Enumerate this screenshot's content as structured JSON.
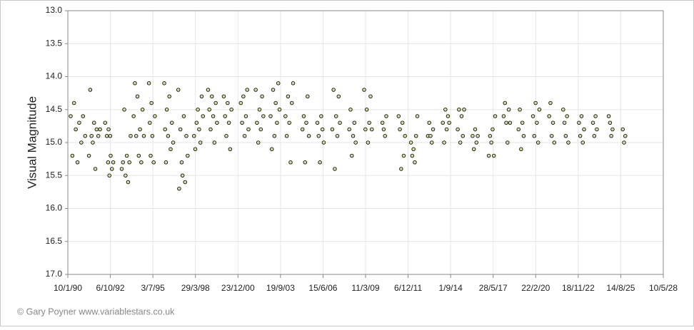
{
  "chart_data": {
    "type": "scatter",
    "ylabel": "Visual Magnitude",
    "credit": "© Gary Poyner www.variablestars.co.uk",
    "color": "#d8dca0",
    "y_inverted": true,
    "grid": true,
    "xlim": [
      32883,
      46883
    ],
    "ylim": [
      13,
      17
    ],
    "xticks": [
      {
        "value": 32883,
        "label": "10/1/90"
      },
      {
        "value": 33883,
        "label": "6/10/92"
      },
      {
        "value": 34883,
        "label": "3/7/95"
      },
      {
        "value": 35883,
        "label": "29/3/98"
      },
      {
        "value": 36883,
        "label": "23/12/00"
      },
      {
        "value": 37883,
        "label": "19/9/03"
      },
      {
        "value": 38883,
        "label": "15/6/06"
      },
      {
        "value": 39883,
        "label": "11/3/09"
      },
      {
        "value": 40883,
        "label": "6/12/11"
      },
      {
        "value": 41883,
        "label": "1/9/14"
      },
      {
        "value": 42883,
        "label": "28/5/17"
      },
      {
        "value": 43883,
        "label": "22/2/20"
      },
      {
        "value": 44883,
        "label": "18/11/22"
      },
      {
        "value": 45883,
        "label": "14/8/25"
      },
      {
        "value": 46883,
        "label": "10/5/28"
      }
    ],
    "yticks": [
      {
        "value": 13,
        "label": "13.0"
      },
      {
        "value": 13.5,
        "label": "13.5"
      },
      {
        "value": 14,
        "label": "14.0"
      },
      {
        "value": 14.5,
        "label": "14.5"
      },
      {
        "value": 15,
        "label": "15.0"
      },
      {
        "value": 15.5,
        "label": "15.5"
      },
      {
        "value": 16,
        "label": "16.0"
      },
      {
        "value": 16.5,
        "label": "16.5"
      },
      {
        "value": 17,
        "label": "17.0"
      }
    ],
    "x": [
      32950,
      32990,
      33030,
      33070,
      33110,
      33150,
      33200,
      33240,
      33290,
      33380,
      33410,
      33440,
      33470,
      33500,
      33530,
      33560,
      33600,
      33640,
      33760,
      33800,
      33840,
      33880,
      33830,
      33860,
      33890,
      33920,
      33950,
      34150,
      34180,
      34210,
      34240,
      34270,
      34300,
      34330,
      34360,
      34430,
      34460,
      34490,
      34520,
      34550,
      34580,
      34610,
      34640,
      34670,
      34790,
      34810,
      34830,
      34850,
      34870,
      34900,
      34930,
      35150,
      35170,
      35190,
      35210,
      35240,
      35270,
      35300,
      35330,
      35360,
      35480,
      35500,
      35530,
      35560,
      35580,
      35610,
      35640,
      35670,
      35700,
      35850,
      35880,
      35910,
      35940,
      35970,
      36000,
      36030,
      36060,
      36180,
      36210,
      36240,
      36270,
      36300,
      36330,
      36360,
      36390,
      36550,
      36580,
      36610,
      36640,
      36670,
      36700,
      36730,
      36950,
      36980,
      37010,
      37040,
      37070,
      37100,
      37130,
      37300,
      37330,
      37360,
      37390,
      37420,
      37450,
      37480,
      37650,
      37680,
      37710,
      37740,
      37770,
      37800,
      37830,
      37860,
      38000,
      38030,
      38060,
      38090,
      38120,
      38150,
      38180,
      38400,
      38430,
      38460,
      38490,
      38520,
      38550,
      38750,
      38780,
      38810,
      38840,
      38870,
      38900,
      39100,
      39130,
      39160,
      39190,
      39220,
      39250,
      39280,
      39500,
      39530,
      39560,
      39590,
      39620,
      39650,
      39850,
      39880,
      39910,
      39940,
      39970,
      40000,
      40030,
      40280,
      40310,
      40340,
      40370,
      40660,
      40690,
      40720,
      40750,
      40780,
      40810,
      40950,
      40980,
      41010,
      41040,
      41070,
      41100,
      41350,
      41380,
      41410,
      41440,
      41470,
      41700,
      41730,
      41760,
      41790,
      41820,
      41850,
      42050,
      42080,
      42110,
      42140,
      42170,
      42200,
      42400,
      42430,
      42460,
      42490,
      42520,
      42780,
      42810,
      42840,
      42870,
      42900,
      42930,
      43130,
      43160,
      43190,
      43220,
      43250,
      43280,
      43480,
      43510,
      43540,
      43570,
      43600,
      43820,
      43850,
      43880,
      43910,
      43940,
      43970,
      44200,
      44230,
      44260,
      44290,
      44320,
      44530,
      44560,
      44590,
      44620,
      44650,
      44900,
      44930,
      44960,
      44990,
      45020,
      45230,
      45260,
      45290,
      45320,
      45600,
      45630,
      45660,
      45690,
      45930,
      45960,
      45990
    ],
    "values": [
      14.6,
      15.2,
      14.4,
      14.8,
      15.3,
      14.7,
      15.0,
      14.6,
      14.9,
      15.2,
      14.2,
      14.9,
      15.0,
      14.7,
      15.4,
      14.8,
      14.9,
      14.8,
      14.7,
      14.9,
      14.8,
      14.9,
      15.3,
      15.5,
      15.2,
      15.4,
      15.3,
      15.4,
      15.3,
      14.5,
      15.5,
      15.2,
      15.6,
      15.3,
      14.9,
      14.6,
      14.1,
      14.9,
      14.3,
      15.2,
      14.8,
      15.3,
      14.5,
      14.9,
      14.1,
      14.7,
      15.2,
      14.4,
      14.9,
      15.3,
      14.6,
      14.1,
      14.8,
      15.3,
      14.5,
      14.9,
      14.3,
      15.1,
      14.7,
      15.0,
      14.2,
      15.7,
      14.8,
      15.3,
      15.5,
      14.6,
      15.6,
      14.9,
      15.2,
      14.9,
      15.1,
      14.7,
      14.5,
      14.8,
      15.0,
      14.3,
      14.6,
      14.2,
      14.5,
      14.8,
      14.3,
      14.6,
      15.0,
      14.4,
      14.7,
      14.3,
      14.6,
      14.9,
      14.4,
      14.7,
      15.1,
      14.5,
      14.4,
      14.7,
      14.3,
      14.9,
      14.6,
      14.2,
      14.8,
      14.2,
      14.7,
      15.0,
      14.5,
      14.8,
      14.3,
      14.6,
      14.6,
      15.1,
      14.2,
      14.9,
      14.4,
      14.7,
      14.1,
      14.5,
      14.6,
      14.9,
      14.3,
      14.7,
      15.3,
      14.4,
      14.1,
      14.8,
      14.6,
      15.3,
      14.7,
      14.3,
      14.9,
      14.7,
      14.9,
      15.3,
      14.6,
      14.8,
      15.0,
      14.8,
      14.2,
      15.4,
      14.6,
      14.9,
      14.3,
      14.7,
      14.8,
      14.5,
      15.2,
      14.9,
      14.7,
      15.0,
      14.2,
      14.8,
      14.5,
      15.0,
      14.7,
      14.3,
      14.8,
      14.7,
      14.8,
      14.9,
      14.6,
      14.6,
      14.8,
      15.4,
      14.7,
      15.2,
      14.9,
      15.0,
      15.2,
      15.1,
      15.3,
      14.9,
      14.6,
      14.9,
      14.7,
      14.9,
      15.0,
      14.8,
      14.7,
      15.0,
      14.5,
      14.8,
      14.6,
      14.7,
      14.8,
      14.5,
      15.0,
      14.6,
      14.9,
      14.5,
      14.9,
      15.1,
      14.8,
      15.0,
      14.9,
      15.2,
      14.9,
      15.0,
      14.8,
      15.2,
      14.6,
      14.6,
      14.4,
      14.7,
      15.0,
      14.5,
      14.7,
      14.8,
      14.5,
      15.1,
      14.7,
      14.9,
      14.6,
      14.9,
      14.4,
      14.7,
      15.0,
      14.5,
      14.6,
      14.4,
      14.9,
      14.7,
      15.0,
      14.5,
      14.7,
      14.9,
      14.6,
      15.0,
      14.7,
      14.9,
      14.6,
      15.0,
      14.8,
      14.7,
      14.9,
      14.6,
      14.8,
      14.6,
      14.7,
      14.9,
      14.8,
      14.8,
      15.0,
      14.9
    ]
  }
}
